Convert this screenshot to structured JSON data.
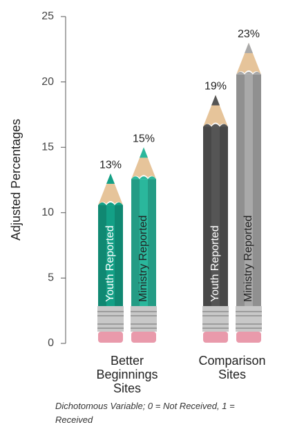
{
  "chart_data": {
    "type": "bar",
    "y_label": "Adjusted Percentages",
    "categories": [
      "Better Beginnings Sites",
      "Comparison Sites"
    ],
    "series": [
      {
        "name": "Youth Reported",
        "colors": [
          "#13a086",
          "#555555"
        ],
        "values": [
          13,
          19
        ],
        "value_labels": [
          "13%",
          "19%"
        ]
      },
      {
        "name": "Ministry Reported",
        "colors": [
          "#2ab79c",
          "#a9a9a9"
        ],
        "values": [
          15,
          23
        ],
        "value_labels": [
          "15%",
          "23%"
        ]
      }
    ],
    "ylim": [
      0,
      25
    ],
    "yticks": [
      0,
      5,
      10,
      15,
      20,
      25
    ],
    "note": "Dichotomous Variable; 0 = Not Received, 1 = Received"
  }
}
